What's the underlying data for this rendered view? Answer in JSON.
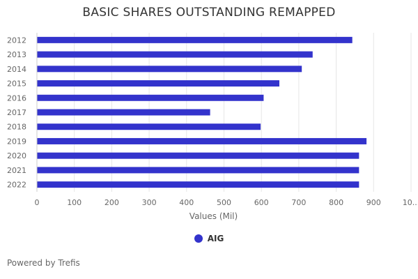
{
  "chart_data": {
    "type": "bar",
    "orientation": "horizontal",
    "title": "BASIC SHARES OUTSTANDING REMAPPED",
    "xlabel": "Values (Mil)",
    "ylabel": "",
    "xlim": [
      0,
      1000
    ],
    "x_ticks": [
      "0",
      "100",
      "200",
      "300",
      "400",
      "500",
      "600",
      "700",
      "800",
      "900",
      "10..."
    ],
    "categories": [
      "2012",
      "2013",
      "2014",
      "2015",
      "2016",
      "2017",
      "2018",
      "2019",
      "2020",
      "2021",
      "2022"
    ],
    "series": [
      {
        "name": "AIG",
        "color": "#3333cc",
        "values": [
          843,
          737,
          708,
          648,
          606,
          463,
          598,
          881,
          861,
          861,
          861
        ]
      }
    ],
    "grid": true,
    "legend_position": "bottom"
  },
  "footer": {
    "credits": "Powered by Trefis"
  }
}
